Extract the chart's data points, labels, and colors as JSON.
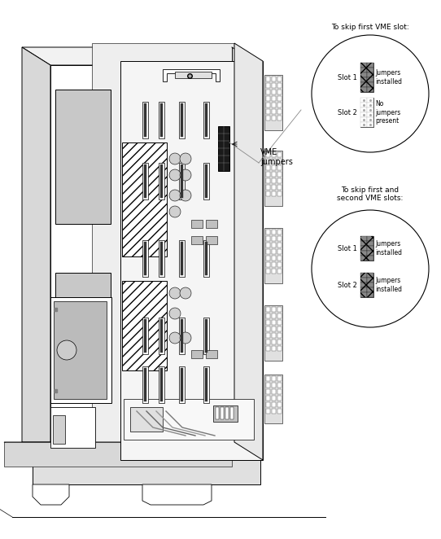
{
  "bg_color": "#ffffff",
  "lw": 0.7,
  "circle1_title": "To skip first VME slot:",
  "circle2_title": "To skip first and\nsecond VME slots:",
  "vme_label": "VME\njumpers",
  "slot1": "Slot 1",
  "slot2": "Slot 2",
  "jumpers_installed": "Jumpers\ninstalled",
  "no_jumpers": "No\njumpers\npresent"
}
